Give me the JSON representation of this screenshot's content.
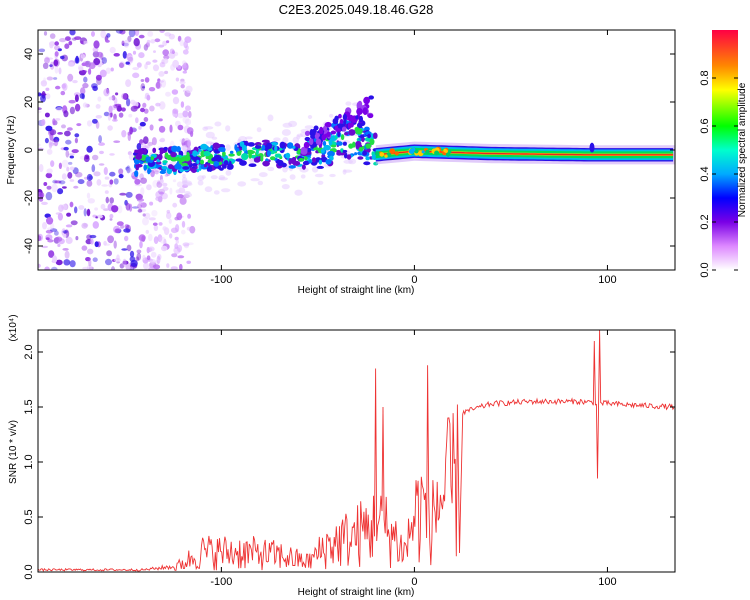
{
  "title": "C2E3.2025.049.18.46.G28",
  "chart_data": [
    {
      "type": "heatmap",
      "name": "spectrogram",
      "xlabel": "Height of straight line (km)",
      "ylabel": "Frequency (Hz)",
      "xlim": [
        -195,
        135
      ],
      "ylim": [
        -50,
        50
      ],
      "xticks": [
        -100,
        0,
        100
      ],
      "yticks": [
        -40,
        -20,
        0,
        20,
        40
      ],
      "trend": [
        {
          "x": -145,
          "y": -5
        },
        {
          "x": -120,
          "y": -4
        },
        {
          "x": -100,
          "y": -3
        },
        {
          "x": -80,
          "y": -1
        },
        {
          "x": -60,
          "y": -3
        },
        {
          "x": -50,
          "y": 0
        },
        {
          "x": -40,
          "y": 3
        },
        {
          "x": -30,
          "y": 6
        },
        {
          "x": -22,
          "y": 0
        },
        {
          "x": -20,
          "y": -2
        },
        {
          "x": 0,
          "y": -0.5
        },
        {
          "x": 40,
          "y": -1.5
        },
        {
          "x": 90,
          "y": -2
        },
        {
          "x": 135,
          "y": -2
        }
      ],
      "colorbar": {
        "label": "Normalized spectral amplitude",
        "range": [
          0,
          1
        ],
        "ticks": [
          "0.0",
          "0.2",
          "0.4",
          "0.6",
          "0.8"
        ],
        "tick_values": [
          0,
          0.2,
          0.4,
          0.6,
          0.8
        ]
      }
    },
    {
      "type": "line",
      "name": "snr",
      "xlabel": "Height of straight line (km)",
      "ylabel": "SNR (10 * v/v)",
      "scale_label": "(x10⁴)",
      "xlim": [
        -195,
        135
      ],
      "ylim": [
        0,
        2.2
      ],
      "xticks": [
        -100,
        0,
        100
      ],
      "yticks": [
        "0.0",
        "0.5",
        "1.0",
        "1.5",
        "2.0"
      ],
      "ytick_values": [
        0,
        0.5,
        1.0,
        1.5,
        2.0
      ],
      "color": "#ee3333",
      "envelope": [
        {
          "x": -195,
          "y": 0.02
        },
        {
          "x": -140,
          "y": 0.02
        },
        {
          "x": -125,
          "y": 0.05
        },
        {
          "x": -110,
          "y": 0.3
        },
        {
          "x": -90,
          "y": 0.3
        },
        {
          "x": -70,
          "y": 0.25
        },
        {
          "x": -55,
          "y": 0.15
        },
        {
          "x": -45,
          "y": 0.4
        },
        {
          "x": -30,
          "y": 0.55
        },
        {
          "x": -20,
          "y": 0.7
        },
        {
          "x": -12,
          "y": 0.6
        },
        {
          "x": -5,
          "y": 0.3
        },
        {
          "x": 0,
          "y": 0.85
        },
        {
          "x": 5,
          "y": 1.0
        },
        {
          "x": 10,
          "y": 1.0
        },
        {
          "x": 15,
          "y": 1.15
        },
        {
          "x": 25,
          "y": 1.45
        },
        {
          "x": 40,
          "y": 1.53
        },
        {
          "x": 60,
          "y": 1.55
        },
        {
          "x": 85,
          "y": 1.55
        },
        {
          "x": 110,
          "y": 1.52
        },
        {
          "x": 135,
          "y": 1.5
        }
      ],
      "spikes": [
        {
          "x": -20,
          "y": 1.85
        },
        {
          "x": -16,
          "y": 1.5
        },
        {
          "x": 7,
          "y": 1.88
        },
        {
          "x": 9,
          "y": 0.3
        },
        {
          "x": 93,
          "y": 2.1
        },
        {
          "x": 96,
          "y": 2.2
        },
        {
          "x": 95,
          "y": 0.85
        }
      ]
    }
  ]
}
